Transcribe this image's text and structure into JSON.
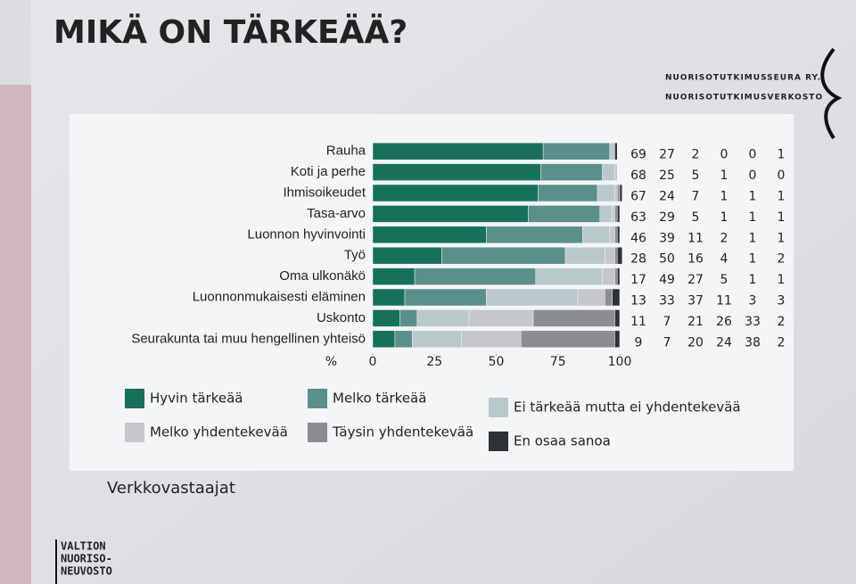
{
  "chart_data": {
    "type": "stacked-barh",
    "title": "MIKÄ ON TÄRKEÄÄ?",
    "categories": [
      "Rauha",
      "Koti ja perhe",
      "Ihmisoikeudet",
      "Tasa-arvo",
      "Luonnon hyvinvointi",
      "Työ",
      "Oma ulkonäkö",
      "Luonnonmukaisesti eläminen",
      "Uskonto",
      "Seurakunta tai muu hengellinen yhteisö"
    ],
    "series": [
      {
        "name": "Hyvin tärkeää",
        "color": "#17705a",
        "values": [
          69,
          68,
          67,
          63,
          46,
          28,
          17,
          13,
          11,
          9
        ]
      },
      {
        "name": "Melko tärkeää",
        "color": "#5b8f8b",
        "values": [
          27,
          25,
          24,
          29,
          39,
          50,
          49,
          33,
          7,
          7
        ]
      },
      {
        "name": "Ei tärkeää mutta ei yhdentekevää",
        "color": "#b9c9cb",
        "values": [
          2,
          5,
          7,
          5,
          11,
          16,
          27,
          37,
          21,
          20
        ]
      },
      {
        "name": "Melko yhdentekevää",
        "color": "#c5c7cd",
        "values": [
          0,
          1,
          1,
          1,
          2,
          4,
          5,
          11,
          26,
          24
        ]
      },
      {
        "name": "Täysin yhdentekevää",
        "color": "#8b8d92",
        "values": [
          0,
          0,
          1,
          1,
          1,
          1,
          1,
          3,
          33,
          38
        ]
      },
      {
        "name": "En osaa sanoa",
        "color": "#2e3135",
        "values": [
          1,
          0,
          1,
          1,
          1,
          2,
          1,
          3,
          2,
          2
        ]
      }
    ],
    "xlabel": "%",
    "xlim": [
      0,
      100
    ],
    "xticks": [
      0,
      25,
      50,
      75,
      100
    ]
  },
  "slide": {
    "org": [
      "NUORISOTUTKIMUSSEURA RY.",
      "NUORISOTUTKIMUSVERKOSTO"
    ],
    "note": "Verkkovastaajat",
    "logo": [
      "VALTION",
      "NUORISO-",
      "NEUVOSTO"
    ]
  }
}
